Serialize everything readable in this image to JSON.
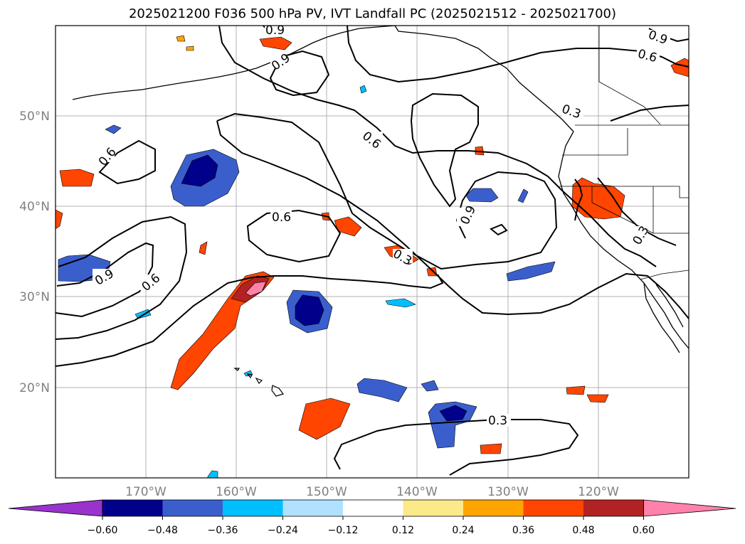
{
  "title": "2025021200 F036 500 hPa PV, IVT Landfall PC (2025021512 - 2025021700)",
  "map": {
    "lon_labels": [
      "170°W",
      "160°W",
      "150°W",
      "140°W",
      "130°W",
      "120°W"
    ],
    "lat_labels": [
      "50°N",
      "40°N",
      "30°N",
      "20°N"
    ],
    "contour_labels": [
      "0.9",
      "0.9",
      "0.6",
      "0.6",
      "0.3",
      "0.6",
      "0.9",
      "0.3",
      "0.6",
      "0.3",
      "0.9",
      "0.6",
      "0.3",
      "0.9"
    ]
  },
  "colorbar": {
    "ticks": [
      "−0.60",
      "−0.48",
      "−0.36",
      "−0.24",
      "−0.12",
      "0.12",
      "0.24",
      "0.36",
      "0.48",
      "0.60"
    ],
    "colors": [
      "#9a32cd",
      "#00008b",
      "#3a5fcd",
      "#00bfff",
      "#b0e2ff",
      "#ffffff",
      "#fce98a",
      "#ffa500",
      "#ff4500",
      "#b22222",
      "#ff82ab"
    ]
  }
}
